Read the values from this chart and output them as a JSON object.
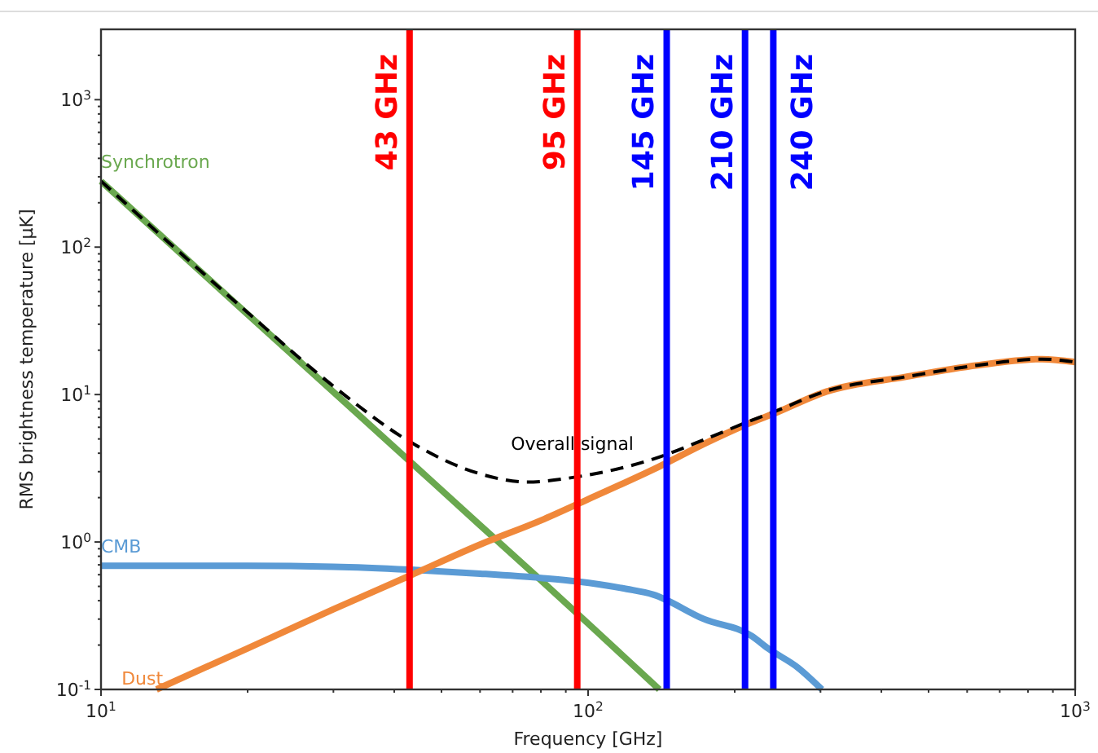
{
  "chart_data": {
    "type": "line",
    "xlabel": "Frequency [GHz]",
    "ylabel": "RMS brightness temperature [μK]",
    "log": "xy",
    "grid": false,
    "xlim": [
      10,
      1000
    ],
    "ylim": [
      0.1,
      3000
    ],
    "xticks": [
      {
        "value": 10,
        "label": "10$^{1}$"
      },
      {
        "value": 20,
        "label": null
      },
      {
        "value": 30,
        "label": null
      },
      {
        "value": 40,
        "label": null
      },
      {
        "value": 50,
        "label": null
      },
      {
        "value": 60,
        "label": null
      },
      {
        "value": 70,
        "label": null
      },
      {
        "value": 80,
        "label": null
      },
      {
        "value": 90,
        "label": null
      },
      {
        "value": 100,
        "label": "10$^{2}$"
      },
      {
        "value": 200,
        "label": null
      },
      {
        "value": 300,
        "label": null
      },
      {
        "value": 400,
        "label": null
      },
      {
        "value": 500,
        "label": null
      },
      {
        "value": 600,
        "label": null
      },
      {
        "value": 700,
        "label": null
      },
      {
        "value": 800,
        "label": null
      },
      {
        "value": 900,
        "label": null
      },
      {
        "value": 1000,
        "label": "10$^{3}$"
      }
    ],
    "yticks": [
      {
        "value": 0.1,
        "label": "10$^{-1}$"
      },
      {
        "value": 0.2,
        "label": null
      },
      {
        "value": 0.3,
        "label": null
      },
      {
        "value": 0.4,
        "label": null
      },
      {
        "value": 0.5,
        "label": null
      },
      {
        "value": 0.6,
        "label": null
      },
      {
        "value": 0.7,
        "label": null
      },
      {
        "value": 0.8,
        "label": null
      },
      {
        "value": 0.9,
        "label": null
      },
      {
        "value": 1,
        "label": "10$^{0}$"
      },
      {
        "value": 2,
        "label": null
      },
      {
        "value": 3,
        "label": null
      },
      {
        "value": 4,
        "label": null
      },
      {
        "value": 5,
        "label": null
      },
      {
        "value": 6,
        "label": null
      },
      {
        "value": 7,
        "label": null
      },
      {
        "value": 8,
        "label": null
      },
      {
        "value": 9,
        "label": null
      },
      {
        "value": 10,
        "label": "10$^{1}$"
      },
      {
        "value": 20,
        "label": null
      },
      {
        "value": 30,
        "label": null
      },
      {
        "value": 40,
        "label": null
      },
      {
        "value": 50,
        "label": null
      },
      {
        "value": 60,
        "label": null
      },
      {
        "value": 70,
        "label": null
      },
      {
        "value": 80,
        "label": null
      },
      {
        "value": 90,
        "label": null
      },
      {
        "value": 100,
        "label": "10$^{2}$"
      },
      {
        "value": 200,
        "label": null
      },
      {
        "value": 300,
        "label": null
      },
      {
        "value": 400,
        "label": null
      },
      {
        "value": 500,
        "label": null
      },
      {
        "value": 600,
        "label": null
      },
      {
        "value": 700,
        "label": null
      },
      {
        "value": 800,
        "label": null
      },
      {
        "value": 900,
        "label": null
      },
      {
        "value": 1000,
        "label": "10$^{3}$"
      },
      {
        "value": 2000,
        "label": null
      }
    ],
    "series": [
      {
        "name": "Synchrotron",
        "color": "#6aa84f",
        "x": [
          10,
          20,
          40,
          60,
          80,
          100,
          140
        ],
        "values": [
          280,
          35,
          4.4,
          1.3,
          0.55,
          0.28,
          0.1
        ]
      },
      {
        "name": "CMB",
        "color": "#5b9bd5",
        "x": [
          10,
          20,
          30,
          43,
          60,
          80,
          95,
          120,
          136,
          173,
          217,
          234,
          270,
          302
        ],
        "values": [
          0.69,
          0.69,
          0.68,
          0.65,
          0.61,
          0.57,
          0.54,
          0.48,
          0.44,
          0.3,
          0.23,
          0.19,
          0.14,
          0.1
        ]
      },
      {
        "name": "Dust",
        "color": "#f0883a",
        "x": [
          13,
          20,
          30,
          43,
          60,
          80,
          100,
          136,
          177,
          217,
          240,
          309,
          449,
          630,
          855,
          1000
        ],
        "values": [
          0.1,
          0.19,
          0.35,
          0.59,
          0.96,
          1.4,
          1.95,
          3.1,
          4.8,
          6.5,
          7.4,
          10.5,
          13.2,
          15.8,
          17.4,
          16.6
        ]
      },
      {
        "name": "Overall signal",
        "color": "#000000",
        "line_style": "dashed",
        "x": [
          10,
          20,
          30,
          43,
          60,
          75,
          95,
          136,
          177,
          217,
          240,
          309,
          449,
          630,
          855,
          1000
        ],
        "values": [
          280,
          36,
          11.4,
          4.8,
          2.9,
          2.55,
          2.77,
          3.65,
          5.1,
          6.7,
          7.6,
          10.6,
          13.2,
          15.8,
          17.4,
          16.6
        ]
      }
    ],
    "ref_lines": [
      {
        "axis": "x",
        "value": 43,
        "label": "43 GHz",
        "color": "#ff0000"
      },
      {
        "axis": "x",
        "value": 95,
        "label": "95 GHz",
        "color": "#ff0000"
      },
      {
        "axis": "x",
        "value": 145,
        "label": "145 GHz",
        "color": "#0000ff"
      },
      {
        "axis": "x",
        "value": 210,
        "label": "210 GHz",
        "color": "#0000ff"
      },
      {
        "axis": "x",
        "value": 240,
        "label": "240 GHz",
        "color": "#0000ff"
      }
    ]
  }
}
